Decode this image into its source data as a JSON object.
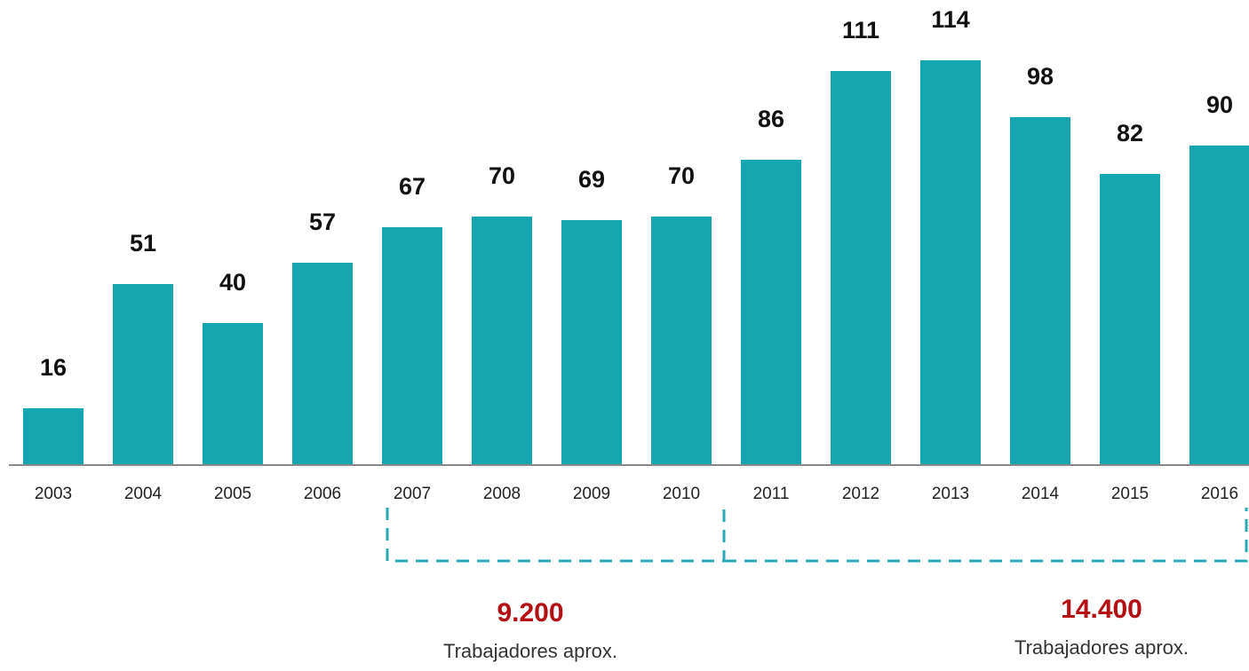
{
  "chart_data": {
    "type": "bar",
    "categories": [
      "2003",
      "2004",
      "2005",
      "2006",
      "2007",
      "2008",
      "2009",
      "2010",
      "2011",
      "2012",
      "2013",
      "2014",
      "2015",
      "2016"
    ],
    "values": [
      16,
      51,
      40,
      57,
      67,
      70,
      69,
      70,
      86,
      111,
      114,
      98,
      82,
      90
    ],
    "color": "#16a6af",
    "ylim": [
      0,
      131
    ],
    "annotations": [
      {
        "label": "9.200",
        "text": "Trabajadores aprox."
      },
      {
        "label": "14.400",
        "text": "Trabajadores aprox."
      }
    ]
  }
}
